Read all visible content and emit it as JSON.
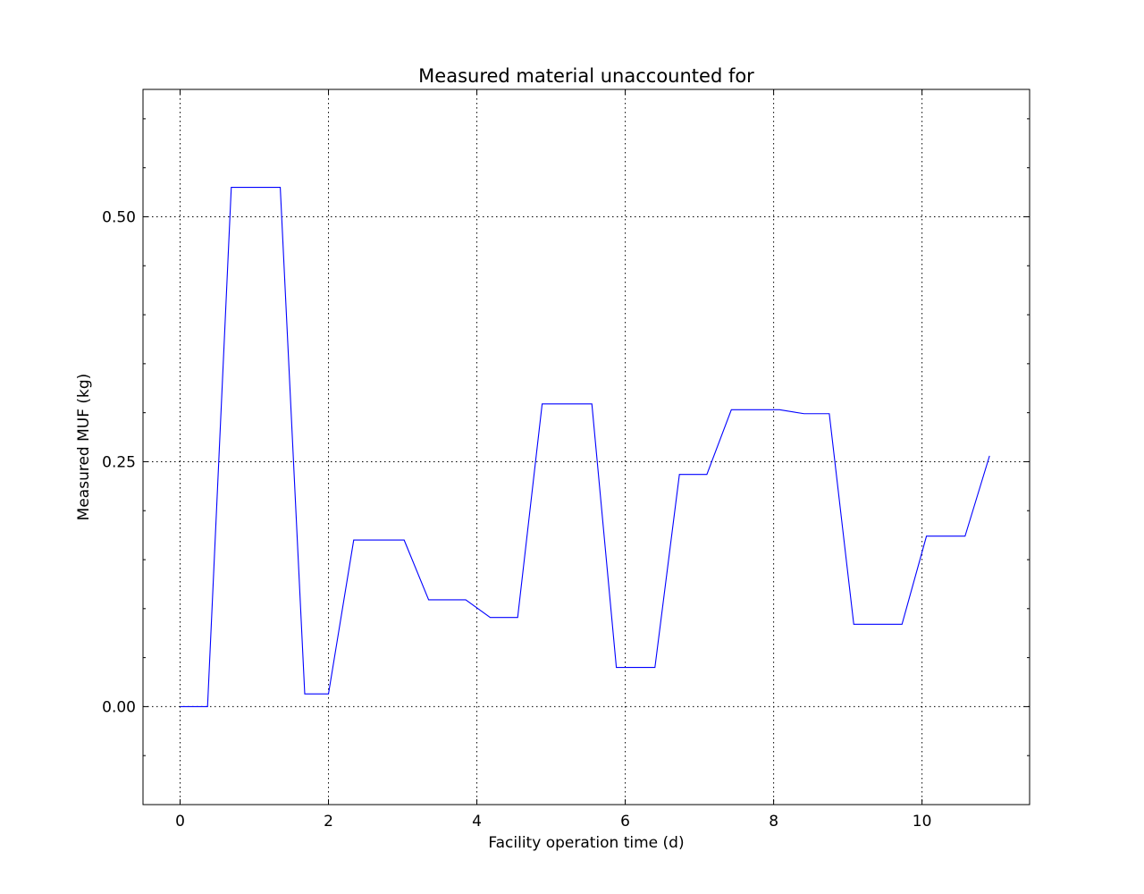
{
  "chart_data": {
    "type": "line",
    "title": "Measured material unaccounted for",
    "xlabel": "Facility operation time (d)",
    "ylabel": "Measured MUF (kg)",
    "xlim": [
      -0.5,
      11.45
    ],
    "ylim": [
      -0.1,
      0.63
    ],
    "xticks": [
      0,
      2,
      4,
      6,
      8,
      10
    ],
    "xtick_labels": [
      "0",
      "2",
      "4",
      "6",
      "8",
      "10"
    ],
    "yticks": [
      0.0,
      0.25,
      0.5
    ],
    "ytick_labels": [
      "0.00",
      "0.25",
      "0.50"
    ],
    "yminor_ticks": [
      -0.05,
      0.05,
      0.1,
      0.15,
      0.2,
      0.3,
      0.35,
      0.4,
      0.45,
      0.55,
      0.6
    ],
    "grid": true,
    "series": [
      {
        "color": "#0000ff",
        "x": [
          0,
          0.37,
          0.69,
          1.35,
          1.68,
          2.0,
          2.34,
          3.02,
          3.35,
          3.85,
          4.18,
          4.55,
          4.88,
          5.55,
          5.88,
          6.4,
          6.73,
          7.1,
          7.43,
          8.08,
          8.41,
          8.75,
          9.08,
          9.73,
          10.06,
          10.58,
          10.91
        ],
        "y": [
          0.0,
          0.0,
          0.53,
          0.53,
          0.013,
          0.013,
          0.17,
          0.17,
          0.109,
          0.109,
          0.091,
          0.091,
          0.309,
          0.309,
          0.04,
          0.04,
          0.237,
          0.237,
          0.303,
          0.303,
          0.299,
          0.299,
          0.084,
          0.084,
          0.174,
          0.174,
          0.256
        ]
      }
    ]
  }
}
